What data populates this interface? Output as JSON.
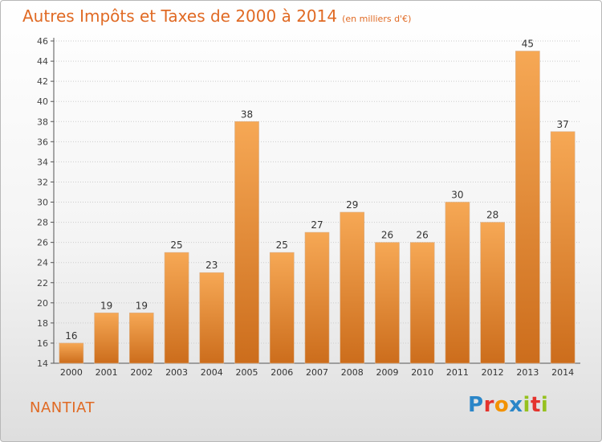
{
  "title": "Autres Impôts et Taxes de 2000 à 2014",
  "subtitle": "(en milliers d'€)",
  "place": "NANTIAT",
  "logo": {
    "letters": [
      {
        "ch": "P",
        "color": "#2b86c8"
      },
      {
        "ch": "r",
        "color": "#e4332d"
      },
      {
        "ch": "o",
        "color": "#f39200"
      },
      {
        "ch": "x",
        "color": "#2b86c8"
      },
      {
        "ch": "i",
        "color": "#96c11f"
      },
      {
        "ch": "t",
        "color": "#e4332d"
      },
      {
        "ch": "i",
        "color": "#96c11f"
      }
    ]
  },
  "colors": {
    "bar_top": "#f6a855",
    "bar_bottom": "#cc6d1c",
    "title": "#e06a24",
    "grid": "#cccccc"
  },
  "chart_data": {
    "type": "bar",
    "categories": [
      "2000",
      "2001",
      "2002",
      "2003",
      "2004",
      "2005",
      "2006",
      "2007",
      "2008",
      "2009",
      "2010",
      "2011",
      "2012",
      "2013",
      "2014"
    ],
    "values": [
      16,
      19,
      19,
      25,
      23,
      38,
      25,
      27,
      29,
      26,
      26,
      30,
      28,
      45,
      37
    ],
    "ylim": [
      14,
      46
    ],
    "yticks": [
      14,
      16,
      18,
      20,
      22,
      24,
      26,
      28,
      30,
      32,
      34,
      36,
      38,
      40,
      42,
      44,
      46
    ],
    "grid": "horizontal dotted",
    "data_labels": true
  }
}
